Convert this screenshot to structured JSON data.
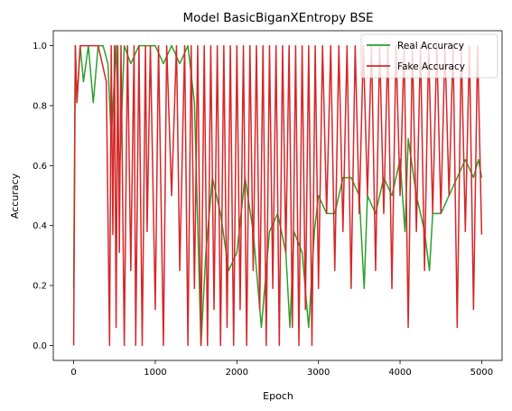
{
  "chart_data": {
    "type": "line",
    "title": "Model BasicBiganXEntropy BSE",
    "xlabel": "Epoch",
    "ylabel": "Accuracy",
    "xlim": [
      -250,
      5250
    ],
    "ylim": [
      -0.05,
      1.05
    ],
    "xticks": [
      0,
      1000,
      2000,
      3000,
      4000,
      5000
    ],
    "yticks": [
      0.0,
      0.2,
      0.4,
      0.6,
      0.8,
      1.0
    ],
    "xtick_labels": [
      "0",
      "1000",
      "2000",
      "3000",
      "4000",
      "5000"
    ],
    "ytick_labels": [
      "0.0",
      "0.2",
      "0.4",
      "0.6",
      "0.8",
      "1.0"
    ],
    "grid": false,
    "legend_position": "top-right",
    "series": [
      {
        "name": "Real Accuracy",
        "color": "#2ca02c",
        "x": [
          0,
          20,
          40,
          80,
          120,
          180,
          240,
          300,
          360,
          420,
          460,
          520,
          560,
          620,
          700,
          800,
          900,
          1000,
          1100,
          1200,
          1300,
          1400,
          1480,
          1560,
          1620,
          1700,
          1800,
          1900,
          2000,
          2100,
          2200,
          2300,
          2400,
          2500,
          2600,
          2650,
          2700,
          2800,
          2880,
          2950,
          3000,
          3100,
          3200,
          3300,
          3400,
          3500,
          3560,
          3600,
          3700,
          3800,
          3900,
          4000,
          4060,
          4100,
          4200,
          4300,
          4360,
          4400,
          4500,
          4600,
          4700,
          4800,
          4900,
          4960,
          5000
        ],
        "values": [
          0.19,
          1.0,
          0.81,
          1.0,
          0.88,
          1.0,
          0.81,
          1.0,
          1.0,
          0.94,
          0.69,
          1.0,
          0.56,
          1.0,
          0.94,
          1.0,
          1.0,
          1.0,
          0.94,
          1.0,
          0.94,
          1.0,
          0.81,
          0.0,
          0.31,
          0.56,
          0.44,
          0.25,
          0.31,
          0.56,
          0.38,
          0.06,
          0.38,
          0.44,
          0.31,
          0.06,
          0.38,
          0.31,
          0.06,
          0.38,
          0.5,
          0.44,
          0.44,
          0.56,
          0.56,
          0.5,
          0.19,
          0.5,
          0.44,
          0.56,
          0.5,
          0.62,
          0.38,
          0.69,
          0.5,
          0.38,
          0.25,
          0.44,
          0.44,
          0.5,
          0.56,
          0.62,
          0.56,
          0.62,
          0.56
        ]
      },
      {
        "name": "Fake Accuracy",
        "color": "#d62728",
        "x": [
          0,
          20,
          40,
          80,
          120,
          200,
          300,
          400,
          440,
          460,
          480,
          500,
          520,
          540,
          560,
          580,
          620,
          660,
          700,
          740,
          760,
          800,
          840,
          880,
          900,
          940,
          1000,
          1040,
          1100,
          1140,
          1200,
          1260,
          1300,
          1360,
          1400,
          1440,
          1480,
          1520,
          1560,
          1600,
          1640,
          1680,
          1720,
          1760,
          1800,
          1840,
          1880,
          1920,
          1960,
          2000,
          2040,
          2080,
          2120,
          2160,
          2200,
          2240,
          2280,
          2320,
          2360,
          2400,
          2440,
          2480,
          2520,
          2560,
          2600,
          2640,
          2680,
          2720,
          2760,
          2800,
          2840,
          2880,
          2920,
          2960,
          3000,
          3050,
          3100,
          3150,
          3200,
          3250,
          3300,
          3350,
          3400,
          3450,
          3500,
          3550,
          3600,
          3650,
          3700,
          3750,
          3800,
          3850,
          3900,
          3950,
          4000,
          4050,
          4100,
          4150,
          4200,
          4250,
          4300,
          4350,
          4400,
          4450,
          4500,
          4550,
          4600,
          4650,
          4700,
          4750,
          4800,
          4850,
          4900,
          4950,
          5000
        ],
        "values": [
          0.0,
          1.0,
          0.81,
          1.0,
          1.0,
          1.0,
          1.0,
          0.88,
          0.0,
          1.0,
          0.37,
          1.0,
          0.06,
          1.0,
          0.31,
          1.0,
          0.0,
          1.0,
          0.25,
          1.0,
          0.0,
          1.0,
          0.0,
          1.0,
          0.38,
          1.0,
          0.12,
          1.0,
          0.0,
          1.0,
          0.5,
          1.0,
          0.25,
          1.0,
          0.0,
          1.0,
          0.19,
          1.0,
          0.0,
          1.0,
          0.0,
          1.0,
          0.12,
          1.0,
          0.0,
          1.0,
          0.06,
          1.0,
          0.0,
          1.0,
          0.12,
          1.0,
          0.0,
          1.0,
          0.25,
          1.0,
          0.12,
          1.0,
          0.0,
          1.0,
          0.19,
          1.0,
          0.0,
          1.0,
          0.31,
          1.0,
          0.06,
          1.0,
          0.0,
          1.0,
          0.12,
          1.0,
          0.0,
          1.0,
          0.19,
          1.0,
          0.44,
          1.0,
          0.25,
          1.0,
          0.38,
          1.0,
          0.19,
          1.0,
          0.44,
          1.0,
          0.5,
          1.0,
          0.25,
          1.0,
          0.44,
          1.0,
          0.19,
          1.0,
          0.5,
          1.0,
          0.06,
          1.0,
          0.38,
          1.0,
          0.25,
          1.0,
          0.44,
          1.0,
          0.44,
          1.0,
          0.5,
          1.0,
          0.06,
          1.0,
          0.38,
          1.0,
          0.12,
          1.0,
          0.37
        ]
      }
    ]
  }
}
